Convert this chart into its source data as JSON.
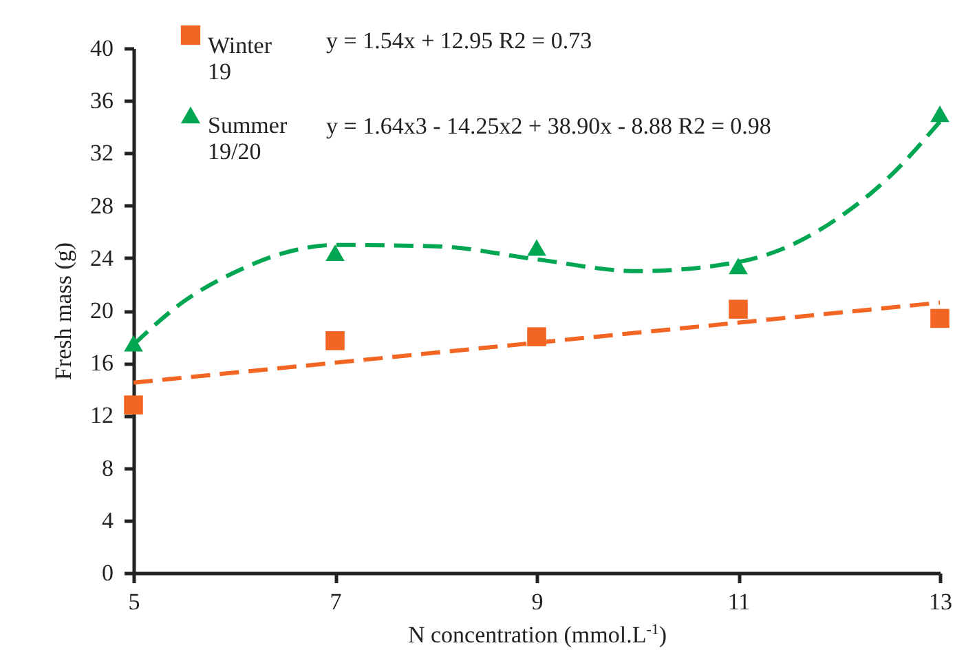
{
  "chart_data": {
    "type": "scatter",
    "xlabel": "N concentration (mmol.L$^{-1}$)",
    "ylabel": "Fresh mass (g)",
    "x": [
      5,
      7,
      9,
      11,
      13
    ],
    "series": [
      {
        "name": "Winter 19",
        "color": "#f26522",
        "marker": "square",
        "values": [
          12.8,
          17.7,
          18.0,
          20.1,
          19.4
        ]
      },
      {
        "name": "Summer 19/20",
        "color": "#00a651",
        "marker": "triangle",
        "values": [
          17.5,
          24.4,
          24.8,
          23.4,
          35.0
        ]
      },
      {
        "type": "line",
        "color": "#f26522",
        "line_style": "dashed",
        "marker": "none",
        "x": [
          5,
          13
        ],
        "values": [
          14.5,
          20.6
        ]
      },
      {
        "type": "line",
        "color": "#00a651",
        "line_style": "dashed",
        "marker": "none",
        "x": [
          5,
          5.5,
          6,
          6.5,
          7,
          8,
          9,
          10,
          11,
          11.5,
          12,
          12.5,
          13
        ],
        "values": [
          17.4,
          20.7,
          22.9,
          24.4,
          25.0,
          24.9,
          23.9,
          23.0,
          23.7,
          24.9,
          27.1,
          30.2,
          34.4
        ]
      }
    ],
    "annotations": [
      "y = 1.54x + 12.95  R2 = 0.73",
      "y = 1.64x3 - 14.25x2 + 38.90x - 8.88  R2 = 0.98"
    ],
    "xlim": [
      5,
      13
    ],
    "xticks": [
      5,
      7,
      9,
      11,
      13
    ],
    "ylim": [
      0,
      40
    ],
    "yticks": [
      0,
      4,
      8,
      12,
      16,
      20,
      24,
      28,
      32,
      36,
      40
    ],
    "grid": false,
    "legend": "top left"
  }
}
